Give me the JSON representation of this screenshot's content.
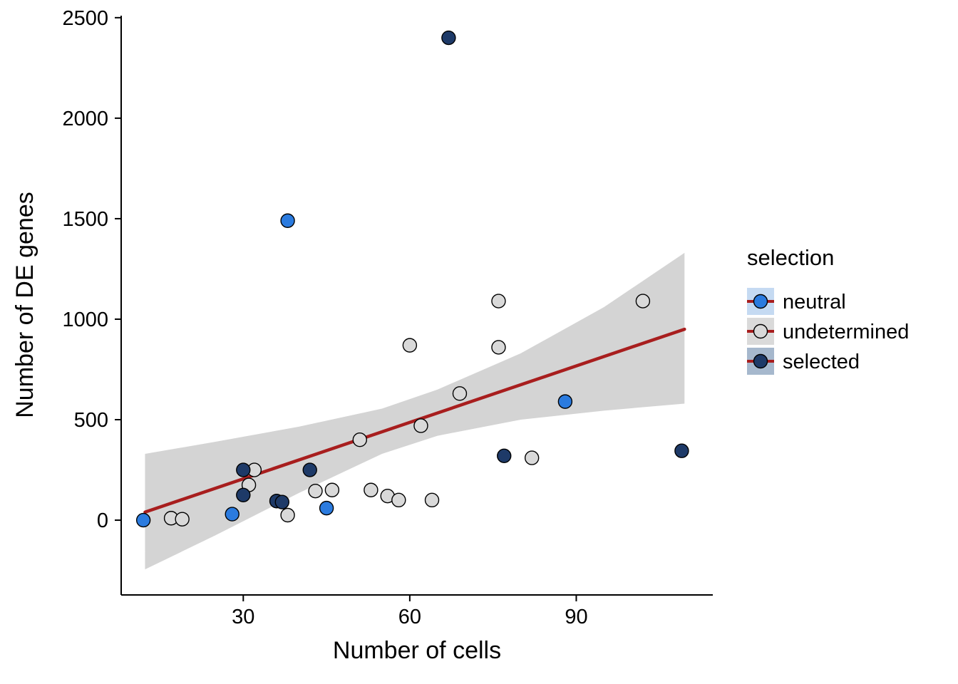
{
  "figure": {
    "background": "#ffffff"
  },
  "chart_data": {
    "type": "scatter",
    "title": "",
    "xlabel": "Number of cells",
    "ylabel": "Number of DE genes",
    "xlim": [
      8,
      114.6
    ],
    "ylim": [
      -372,
      2510
    ],
    "x_ticks": [
      30,
      60,
      90
    ],
    "y_ticks": [
      0,
      500,
      1000,
      1500,
      2000,
      2500
    ],
    "grid": false,
    "legend": {
      "title": "selection",
      "position": "right",
      "entries": [
        {
          "label": "neutral",
          "point_color": "#2b7bdf",
          "key_bg": "#c5daf2"
        },
        {
          "label": "undetermined",
          "point_color": "#d9d9d9",
          "key_bg": "#dadada"
        },
        {
          "label": "selected",
          "point_color": "#1e3a68",
          "key_bg": "#a6b8cd"
        }
      ]
    },
    "point_style": {
      "radius": 9.5,
      "stroke": "#000000",
      "stroke_width": 1.4
    },
    "series": [
      {
        "name": "undetermined",
        "color": "#d9d9d9",
        "points": [
          [
            17,
            10
          ],
          [
            19,
            5
          ],
          [
            31,
            175
          ],
          [
            32,
            250
          ],
          [
            38,
            25
          ],
          [
            43,
            145
          ],
          [
            46,
            150
          ],
          [
            51,
            400
          ],
          [
            53,
            150
          ],
          [
            56,
            120
          ],
          [
            58,
            100
          ],
          [
            60,
            870
          ],
          [
            62,
            470
          ],
          [
            64,
            100
          ],
          [
            69,
            630
          ],
          [
            76,
            1090
          ],
          [
            76,
            860
          ],
          [
            82,
            310
          ],
          [
            102,
            1090
          ]
        ]
      },
      {
        "name": "neutral",
        "color": "#2b7bdf",
        "points": [
          [
            12,
            0
          ],
          [
            28,
            30
          ],
          [
            38,
            1490
          ],
          [
            45,
            60
          ],
          [
            88,
            590
          ]
        ]
      },
      {
        "name": "selected",
        "color": "#1e3a68",
        "points": [
          [
            30,
            250
          ],
          [
            30,
            125
          ],
          [
            36,
            95
          ],
          [
            37,
            90
          ],
          [
            42,
            250
          ],
          [
            67,
            2400
          ],
          [
            77,
            320
          ],
          [
            109,
            345
          ]
        ]
      }
    ],
    "trend_line": {
      "color": "#a81e1e",
      "width": 4.5,
      "x": [
        12.3,
        109.5
      ],
      "y": [
        40,
        950
      ]
    },
    "confidence_band": {
      "color": "#d4d4d4",
      "points": [
        {
          "x": 12.3,
          "lower": -245,
          "upper": 330
        },
        {
          "x": 25,
          "lower": -75,
          "upper": 390
        },
        {
          "x": 40,
          "lower": 135,
          "upper": 465
        },
        {
          "x": 55,
          "lower": 330,
          "upper": 555
        },
        {
          "x": 65,
          "lower": 420,
          "upper": 650
        },
        {
          "x": 80,
          "lower": 500,
          "upper": 830
        },
        {
          "x": 95,
          "lower": 545,
          "upper": 1060
        },
        {
          "x": 109.5,
          "lower": 580,
          "upper": 1330
        }
      ]
    }
  }
}
